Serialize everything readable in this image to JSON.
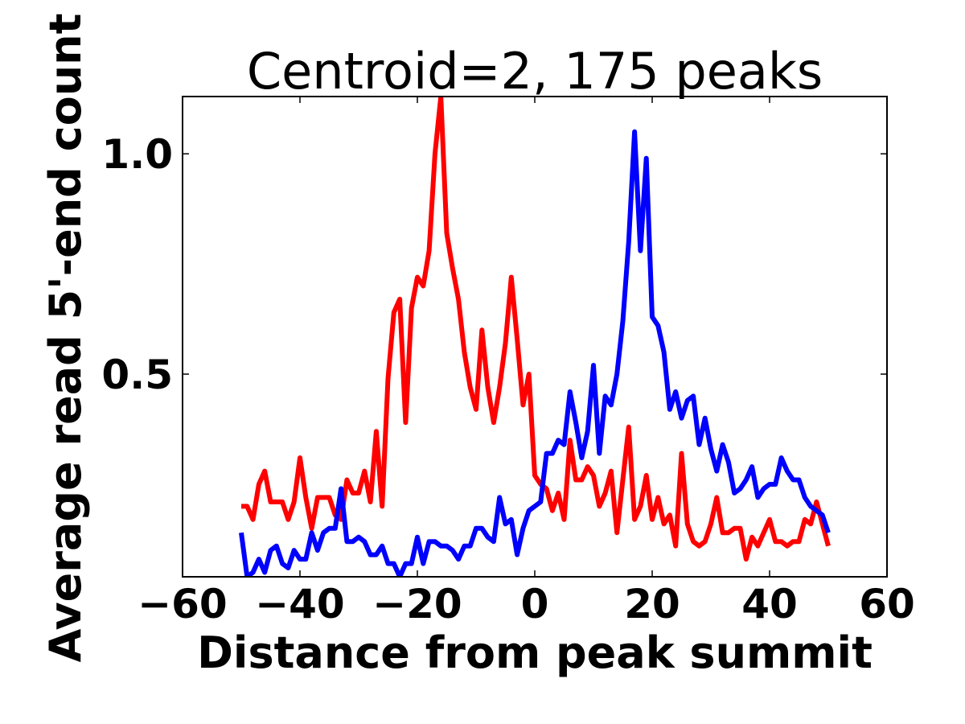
{
  "chart_data": {
    "type": "line",
    "title": "Centroid=2, 175 peaks",
    "xlabel": "Distance from peak summit",
    "ylabel": "Average read 5'-end count",
    "xlim": [
      -60,
      60
    ],
    "ylim": [
      0.04,
      1.13
    ],
    "xticks": [
      -60,
      -40,
      -20,
      0,
      20,
      40,
      60
    ],
    "xtick_labels": [
      "−60",
      "−40",
      "−20",
      "0",
      "20",
      "40",
      "60"
    ],
    "yticks": [
      0.5,
      1.0
    ],
    "ytick_labels": [
      "0.5",
      "1.0"
    ],
    "grid": false,
    "legend": "none",
    "series": [
      {
        "color": "#ff0000",
        "x": [
          -50,
          -49,
          -48,
          -47,
          -46,
          -45,
          -44,
          -43,
          -42,
          -41,
          -40,
          -39,
          -38,
          -37,
          -36,
          -35,
          -34,
          -33,
          -32,
          -31,
          -30,
          -29,
          -28,
          -27,
          -26,
          -25,
          -24,
          -23,
          -22,
          -21,
          -20,
          -19,
          -18,
          -17,
          -16,
          -15,
          -14,
          -13,
          -12,
          -11,
          -10,
          -9,
          -8,
          -7,
          -6,
          -5,
          -4,
          -3,
          -2,
          -1,
          0,
          1,
          2,
          3,
          4,
          5,
          6,
          7,
          8,
          9,
          10,
          11,
          12,
          13,
          14,
          15,
          16,
          17,
          18,
          19,
          20,
          21,
          22,
          23,
          24,
          25,
          26,
          27,
          28,
          29,
          30,
          31,
          32,
          33,
          34,
          35,
          36,
          37,
          38,
          39,
          40,
          41,
          42,
          43,
          44,
          45,
          46,
          47,
          48,
          49,
          50
        ],
        "values": [
          0.2,
          0.2,
          0.17,
          0.25,
          0.28,
          0.21,
          0.21,
          0.21,
          0.17,
          0.21,
          0.31,
          0.22,
          0.15,
          0.22,
          0.22,
          0.22,
          0.18,
          0.17,
          0.26,
          0.23,
          0.23,
          0.28,
          0.21,
          0.37,
          0.2,
          0.49,
          0.64,
          0.67,
          0.39,
          0.65,
          0.72,
          0.7,
          0.78,
          1.0,
          1.13,
          0.82,
          0.74,
          0.67,
          0.55,
          0.47,
          0.42,
          0.6,
          0.47,
          0.39,
          0.47,
          0.57,
          0.72,
          0.58,
          0.43,
          0.5,
          0.27,
          0.25,
          0.24,
          0.19,
          0.23,
          0.17,
          0.35,
          0.26,
          0.26,
          0.29,
          0.27,
          0.2,
          0.23,
          0.28,
          0.14,
          0.26,
          0.38,
          0.17,
          0.2,
          0.27,
          0.17,
          0.22,
          0.16,
          0.18,
          0.11,
          0.32,
          0.16,
          0.12,
          0.11,
          0.12,
          0.16,
          0.22,
          0.14,
          0.14,
          0.15,
          0.15,
          0.08,
          0.13,
          0.11,
          0.14,
          0.17,
          0.12,
          0.12,
          0.11,
          0.12,
          0.12,
          0.17,
          0.16,
          0.21,
          0.16,
          0.11
        ]
      },
      {
        "color": "#0000ff",
        "x": [
          -50,
          -49,
          -48,
          -47,
          -46,
          -45,
          -44,
          -43,
          -42,
          -41,
          -40,
          -39,
          -38,
          -37,
          -36,
          -35,
          -34,
          -33,
          -32,
          -31,
          -30,
          -29,
          -28,
          -27,
          -26,
          -25,
          -24,
          -23,
          -22,
          -21,
          -20,
          -19,
          -18,
          -17,
          -16,
          -15,
          -14,
          -13,
          -12,
          -11,
          -10,
          -9,
          -8,
          -7,
          -6,
          -5,
          -4,
          -3,
          -2,
          -1,
          0,
          1,
          2,
          3,
          4,
          5,
          6,
          7,
          8,
          9,
          10,
          11,
          12,
          13,
          14,
          15,
          16,
          17,
          18,
          19,
          20,
          21,
          22,
          23,
          24,
          25,
          26,
          27,
          28,
          29,
          30,
          31,
          32,
          33,
          34,
          35,
          36,
          37,
          38,
          39,
          40,
          41,
          42,
          43,
          44,
          45,
          46,
          47,
          48,
          49,
          50
        ],
        "values": [
          0.14,
          0.04,
          0.05,
          0.08,
          0.05,
          0.1,
          0.11,
          0.07,
          0.06,
          0.1,
          0.08,
          0.08,
          0.14,
          0.1,
          0.14,
          0.15,
          0.15,
          0.24,
          0.12,
          0.12,
          0.13,
          0.12,
          0.09,
          0.09,
          0.11,
          0.07,
          0.07,
          0.04,
          0.07,
          0.07,
          0.13,
          0.07,
          0.12,
          0.12,
          0.11,
          0.11,
          0.1,
          0.08,
          0.11,
          0.11,
          0.15,
          0.15,
          0.13,
          0.12,
          0.22,
          0.16,
          0.17,
          0.09,
          0.15,
          0.19,
          0.2,
          0.21,
          0.32,
          0.32,
          0.35,
          0.34,
          0.46,
          0.39,
          0.31,
          0.37,
          0.52,
          0.32,
          0.45,
          0.43,
          0.5,
          0.62,
          0.8,
          1.05,
          0.78,
          0.99,
          0.63,
          0.61,
          0.55,
          0.42,
          0.46,
          0.4,
          0.44,
          0.45,
          0.34,
          0.4,
          0.33,
          0.28,
          0.34,
          0.3,
          0.23,
          0.24,
          0.26,
          0.29,
          0.22,
          0.24,
          0.25,
          0.25,
          0.31,
          0.28,
          0.26,
          0.26,
          0.22,
          0.2,
          0.19,
          0.18,
          0.14
        ]
      }
    ]
  }
}
